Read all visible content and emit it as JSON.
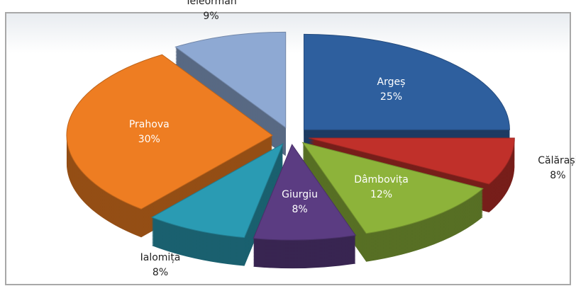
{
  "chart_data": {
    "type": "pie",
    "categories": [
      "Argeș",
      "Călărași",
      "Dâmbovița",
      "Giurgiu",
      "Ialomița",
      "Prahova",
      "Teleorman"
    ],
    "values": [
      25,
      8,
      12,
      8,
      8,
      30,
      9
    ],
    "value_labels": [
      "25%",
      "8%",
      "12%",
      "8%",
      "8%",
      "30%",
      "9%"
    ],
    "colors": [
      "#2e5f9e",
      "#c0302a",
      "#8db33a",
      "#5b3c82",
      "#2a9bb3",
      "#ee7d22",
      "#8ea9d3"
    ]
  }
}
